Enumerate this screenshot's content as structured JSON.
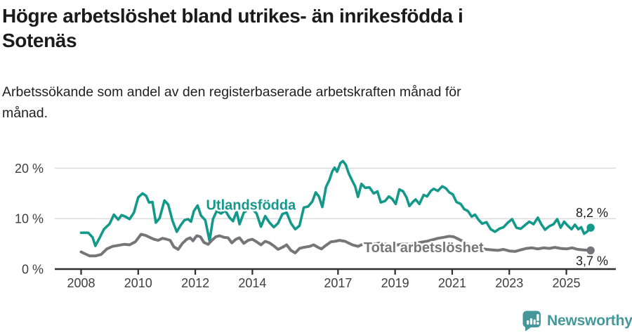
{
  "header": {
    "title_lines": [
      "Högre arbetslöshet bland utrikes- än inrikesfödda i",
      "Sotenäs"
    ],
    "subtitle_lines": [
      "Arbetssökande som andel av den registerbaserade arbetskraften månad för",
      "månad."
    ]
  },
  "chart_data": {
    "type": "line",
    "unit": "%",
    "grid": true,
    "x_axis": {
      "range": [
        2007.9,
        2026.0
      ],
      "ticks": [
        {
          "value": 2008,
          "label": "2008"
        },
        {
          "value": 2010,
          "label": "2010"
        },
        {
          "value": 2012,
          "label": "2012"
        },
        {
          "value": 2014,
          "label": "2014"
        },
        {
          "value": 2017,
          "label": "2017"
        },
        {
          "value": 2019,
          "label": "2019"
        },
        {
          "value": 2021,
          "label": "2021"
        },
        {
          "value": 2023,
          "label": "2023"
        },
        {
          "value": 2025,
          "label": "2025"
        }
      ]
    },
    "y_axis": {
      "range": [
        0,
        22
      ],
      "ticks": [
        {
          "value": 0,
          "label": "0 %"
        },
        {
          "value": 10,
          "label": "10 %"
        },
        {
          "value": 20,
          "label": "20 %"
        }
      ]
    },
    "series": [
      {
        "id": "utlandsfodda",
        "name": "Utlandsfödda",
        "color": "#13998a",
        "stroke_width": 3.6,
        "inline_label": {
          "text": "Utlandsfödda",
          "year": 2013.95,
          "value": 11.8
        },
        "end_value_label": "8,2 %",
        "end_value": 8.2,
        "points": [
          [
            2008.0,
            7.2
          ],
          [
            2008.25,
            7.2
          ],
          [
            2008.4,
            6.3
          ],
          [
            2008.5,
            4.6
          ],
          [
            2008.65,
            6.2
          ],
          [
            2008.8,
            7.9
          ],
          [
            2009.0,
            9.0
          ],
          [
            2009.15,
            10.8
          ],
          [
            2009.3,
            9.8
          ],
          [
            2009.42,
            10.7
          ],
          [
            2009.55,
            10.4
          ],
          [
            2009.7,
            9.9
          ],
          [
            2009.85,
            11.2
          ],
          [
            2010.0,
            14.2
          ],
          [
            2010.15,
            15.0
          ],
          [
            2010.28,
            14.5
          ],
          [
            2010.38,
            13.2
          ],
          [
            2010.5,
            13.3
          ],
          [
            2010.62,
            9.2
          ],
          [
            2010.75,
            10.1
          ],
          [
            2010.92,
            13.6
          ],
          [
            2011.05,
            12.8
          ],
          [
            2011.2,
            9.6
          ],
          [
            2011.35,
            7.4
          ],
          [
            2011.5,
            8.8
          ],
          [
            2011.62,
            9.7
          ],
          [
            2011.75,
            9.9
          ],
          [
            2011.85,
            9.4
          ],
          [
            2011.95,
            11.5
          ],
          [
            2012.08,
            12.6
          ],
          [
            2012.2,
            10.6
          ],
          [
            2012.35,
            9.7
          ],
          [
            2012.5,
            5.6
          ],
          [
            2012.62,
            9.9
          ],
          [
            2012.75,
            11.5
          ],
          [
            2012.9,
            11.0
          ],
          [
            2013.05,
            11.6
          ],
          [
            2013.2,
            10.2
          ],
          [
            2013.32,
            9.5
          ],
          [
            2013.45,
            11.4
          ],
          [
            2013.55,
            8.9
          ],
          [
            2013.7,
            11.2
          ],
          [
            2013.85,
            11.8
          ],
          [
            2014.0,
            11.9
          ],
          [
            2014.15,
            11.0
          ],
          [
            2014.3,
            8.4
          ],
          [
            2014.45,
            10.5
          ],
          [
            2014.6,
            9.2
          ],
          [
            2014.75,
            8.3
          ],
          [
            2014.9,
            9.1
          ],
          [
            2015.05,
            10.9
          ],
          [
            2015.2,
            11.2
          ],
          [
            2015.35,
            9.1
          ],
          [
            2015.5,
            7.9
          ],
          [
            2015.65,
            8.6
          ],
          [
            2015.8,
            12.2
          ],
          [
            2015.95,
            12.4
          ],
          [
            2016.1,
            13.4
          ],
          [
            2016.22,
            15.2
          ],
          [
            2016.33,
            14.4
          ],
          [
            2016.45,
            12.3
          ],
          [
            2016.58,
            16.3
          ],
          [
            2016.7,
            17.7
          ],
          [
            2016.8,
            19.4
          ],
          [
            2016.88,
            20.1
          ],
          [
            2016.97,
            19.3
          ],
          [
            2017.08,
            21.0
          ],
          [
            2017.17,
            21.4
          ],
          [
            2017.27,
            20.7
          ],
          [
            2017.38,
            18.9
          ],
          [
            2017.5,
            17.5
          ],
          [
            2017.6,
            16.4
          ],
          [
            2017.7,
            14.3
          ],
          [
            2017.82,
            16.9
          ],
          [
            2017.95,
            16.1
          ],
          [
            2018.1,
            16.2
          ],
          [
            2018.25,
            15.0
          ],
          [
            2018.38,
            15.4
          ],
          [
            2018.5,
            13.2
          ],
          [
            2018.65,
            13.5
          ],
          [
            2018.78,
            14.4
          ],
          [
            2018.9,
            13.9
          ],
          [
            2019.02,
            12.9
          ],
          [
            2019.15,
            15.8
          ],
          [
            2019.28,
            15.4
          ],
          [
            2019.4,
            14.2
          ],
          [
            2019.5,
            12.5
          ],
          [
            2019.62,
            13.3
          ],
          [
            2019.72,
            13.8
          ],
          [
            2019.85,
            12.9
          ],
          [
            2020.0,
            14.7
          ],
          [
            2020.12,
            14.4
          ],
          [
            2020.25,
            15.5
          ],
          [
            2020.35,
            15.9
          ],
          [
            2020.5,
            15.5
          ],
          [
            2020.65,
            16.4
          ],
          [
            2020.78,
            16.0
          ],
          [
            2020.9,
            15.2
          ],
          [
            2021.02,
            14.8
          ],
          [
            2021.15,
            13.3
          ],
          [
            2021.3,
            12.9
          ],
          [
            2021.42,
            11.9
          ],
          [
            2021.55,
            11.5
          ],
          [
            2021.68,
            10.4
          ],
          [
            2021.8,
            10.8
          ],
          [
            2021.92,
            9.8
          ],
          [
            2022.05,
            9.0
          ],
          [
            2022.2,
            9.3
          ],
          [
            2022.35,
            7.9
          ],
          [
            2022.5,
            7.4
          ],
          [
            2022.65,
            8.0
          ],
          [
            2022.8,
            8.3
          ],
          [
            2022.95,
            9.2
          ],
          [
            2023.1,
            9.9
          ],
          [
            2023.25,
            8.2
          ],
          [
            2023.4,
            8.0
          ],
          [
            2023.55,
            8.7
          ],
          [
            2023.7,
            9.4
          ],
          [
            2023.85,
            8.9
          ],
          [
            2024.0,
            10.2
          ],
          [
            2024.12,
            8.9
          ],
          [
            2024.25,
            7.8
          ],
          [
            2024.4,
            8.5
          ],
          [
            2024.55,
            8.9
          ],
          [
            2024.68,
            9.9
          ],
          [
            2024.8,
            8.2
          ],
          [
            2024.92,
            9.4
          ],
          [
            2025.05,
            8.6
          ],
          [
            2025.18,
            7.9
          ],
          [
            2025.3,
            8.8
          ],
          [
            2025.42,
            7.9
          ],
          [
            2025.52,
            8.3
          ],
          [
            2025.62,
            7.0
          ],
          [
            2025.72,
            7.4
          ],
          [
            2025.85,
            8.2
          ]
        ]
      },
      {
        "id": "total",
        "name": "Total arbetslöshet",
        "color": "#76757a",
        "stroke_width": 4,
        "inline_label": {
          "text": "Total arbetslöshet",
          "year": 2020.0,
          "value": 3.35
        },
        "end_value_label": "3,7 %",
        "end_value": 3.7,
        "points": [
          [
            2008.0,
            3.4
          ],
          [
            2008.15,
            3.0
          ],
          [
            2008.3,
            2.6
          ],
          [
            2008.5,
            2.6
          ],
          [
            2008.7,
            2.9
          ],
          [
            2008.9,
            4.0
          ],
          [
            2009.1,
            4.5
          ],
          [
            2009.3,
            4.7
          ],
          [
            2009.5,
            4.9
          ],
          [
            2009.7,
            4.8
          ],
          [
            2009.9,
            5.4
          ],
          [
            2010.1,
            6.9
          ],
          [
            2010.25,
            6.7
          ],
          [
            2010.4,
            6.3
          ],
          [
            2010.55,
            5.9
          ],
          [
            2010.7,
            5.7
          ],
          [
            2010.85,
            6.1
          ],
          [
            2011.0,
            5.9
          ],
          [
            2011.12,
            5.7
          ],
          [
            2011.25,
            4.4
          ],
          [
            2011.4,
            3.9
          ],
          [
            2011.55,
            5.1
          ],
          [
            2011.7,
            5.9
          ],
          [
            2011.82,
            6.2
          ],
          [
            2011.92,
            5.6
          ],
          [
            2012.05,
            6.6
          ],
          [
            2012.18,
            6.4
          ],
          [
            2012.3,
            5.3
          ],
          [
            2012.45,
            4.9
          ],
          [
            2012.6,
            5.8
          ],
          [
            2012.72,
            6.4
          ],
          [
            2012.85,
            6.6
          ],
          [
            2013.0,
            6.3
          ],
          [
            2013.15,
            6.2
          ],
          [
            2013.28,
            5.2
          ],
          [
            2013.42,
            5.9
          ],
          [
            2013.55,
            6.2
          ],
          [
            2013.7,
            5.1
          ],
          [
            2013.85,
            5.7
          ],
          [
            2014.0,
            5.9
          ],
          [
            2014.15,
            5.4
          ],
          [
            2014.3,
            4.8
          ],
          [
            2014.45,
            5.5
          ],
          [
            2014.6,
            5.2
          ],
          [
            2014.75,
            4.6
          ],
          [
            2014.9,
            3.9
          ],
          [
            2015.05,
            4.3
          ],
          [
            2015.2,
            4.8
          ],
          [
            2015.35,
            3.7
          ],
          [
            2015.5,
            3.2
          ],
          [
            2015.65,
            4.1
          ],
          [
            2015.8,
            4.3
          ],
          [
            2016.0,
            4.5
          ],
          [
            2016.15,
            4.8
          ],
          [
            2016.3,
            4.3
          ],
          [
            2016.42,
            4.0
          ],
          [
            2016.55,
            4.6
          ],
          [
            2016.75,
            5.4
          ],
          [
            2016.9,
            5.5
          ],
          [
            2017.05,
            5.7
          ],
          [
            2017.25,
            5.5
          ],
          [
            2017.5,
            4.8
          ],
          [
            2017.7,
            4.5
          ],
          [
            2017.9,
            5.0
          ],
          [
            2018.1,
            5.2
          ],
          [
            2018.3,
            5.0
          ],
          [
            2018.5,
            5.2
          ],
          [
            2018.7,
            4.9
          ],
          [
            2018.9,
            4.6
          ],
          [
            2019.1,
            4.8
          ],
          [
            2019.3,
            5.0
          ],
          [
            2019.5,
            4.9
          ],
          [
            2019.7,
            5.1
          ],
          [
            2019.9,
            5.3
          ],
          [
            2020.1,
            5.5
          ],
          [
            2020.3,
            5.8
          ],
          [
            2020.5,
            6.1
          ],
          [
            2020.7,
            6.3
          ],
          [
            2020.9,
            6.5
          ],
          [
            2021.05,
            6.4
          ],
          [
            2021.2,
            6.0
          ],
          [
            2021.4,
            5.4
          ],
          [
            2021.6,
            4.8
          ],
          [
            2021.8,
            4.4
          ],
          [
            2022.0,
            4.1
          ],
          [
            2022.2,
            3.9
          ],
          [
            2022.4,
            3.8
          ],
          [
            2022.6,
            3.7
          ],
          [
            2022.8,
            3.9
          ],
          [
            2023.0,
            3.6
          ],
          [
            2023.2,
            3.5
          ],
          [
            2023.4,
            3.8
          ],
          [
            2023.6,
            4.1
          ],
          [
            2023.8,
            4.2
          ],
          [
            2024.0,
            4.0
          ],
          [
            2024.2,
            4.2
          ],
          [
            2024.4,
            4.1
          ],
          [
            2024.6,
            4.3
          ],
          [
            2024.8,
            4.1
          ],
          [
            2025.0,
            4.0
          ],
          [
            2025.2,
            4.2
          ],
          [
            2025.4,
            3.9
          ],
          [
            2025.6,
            3.8
          ],
          [
            2025.85,
            3.7
          ]
        ]
      }
    ]
  },
  "footer": {
    "brand": "Newsworthy",
    "brand_color": "#45989a"
  }
}
